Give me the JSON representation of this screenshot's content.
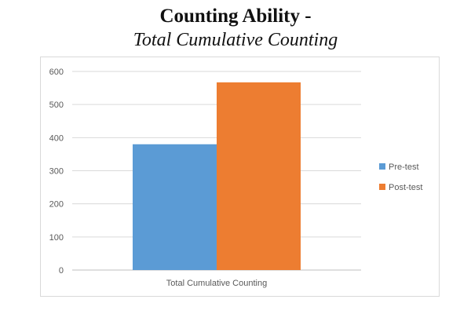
{
  "title": {
    "line1": "Counting Ability -",
    "line2": "Total Cumulative Counting"
  },
  "chart_data": {
    "type": "bar",
    "title": "Counting Ability - Total Cumulative Counting",
    "categories": [
      "Total Cumulative Counting"
    ],
    "series": [
      {
        "name": "Pre-test",
        "values": [
          380
        ],
        "color": "#5b9bd5"
      },
      {
        "name": "Post-test",
        "values": [
          567
        ],
        "color": "#ed7d31"
      }
    ],
    "xlabel": "",
    "ylabel": "",
    "ylim": [
      0,
      600
    ],
    "yticks": [
      "0",
      "100",
      "200",
      "300",
      "400",
      "500",
      "600"
    ],
    "grid": true,
    "legend": "right"
  }
}
